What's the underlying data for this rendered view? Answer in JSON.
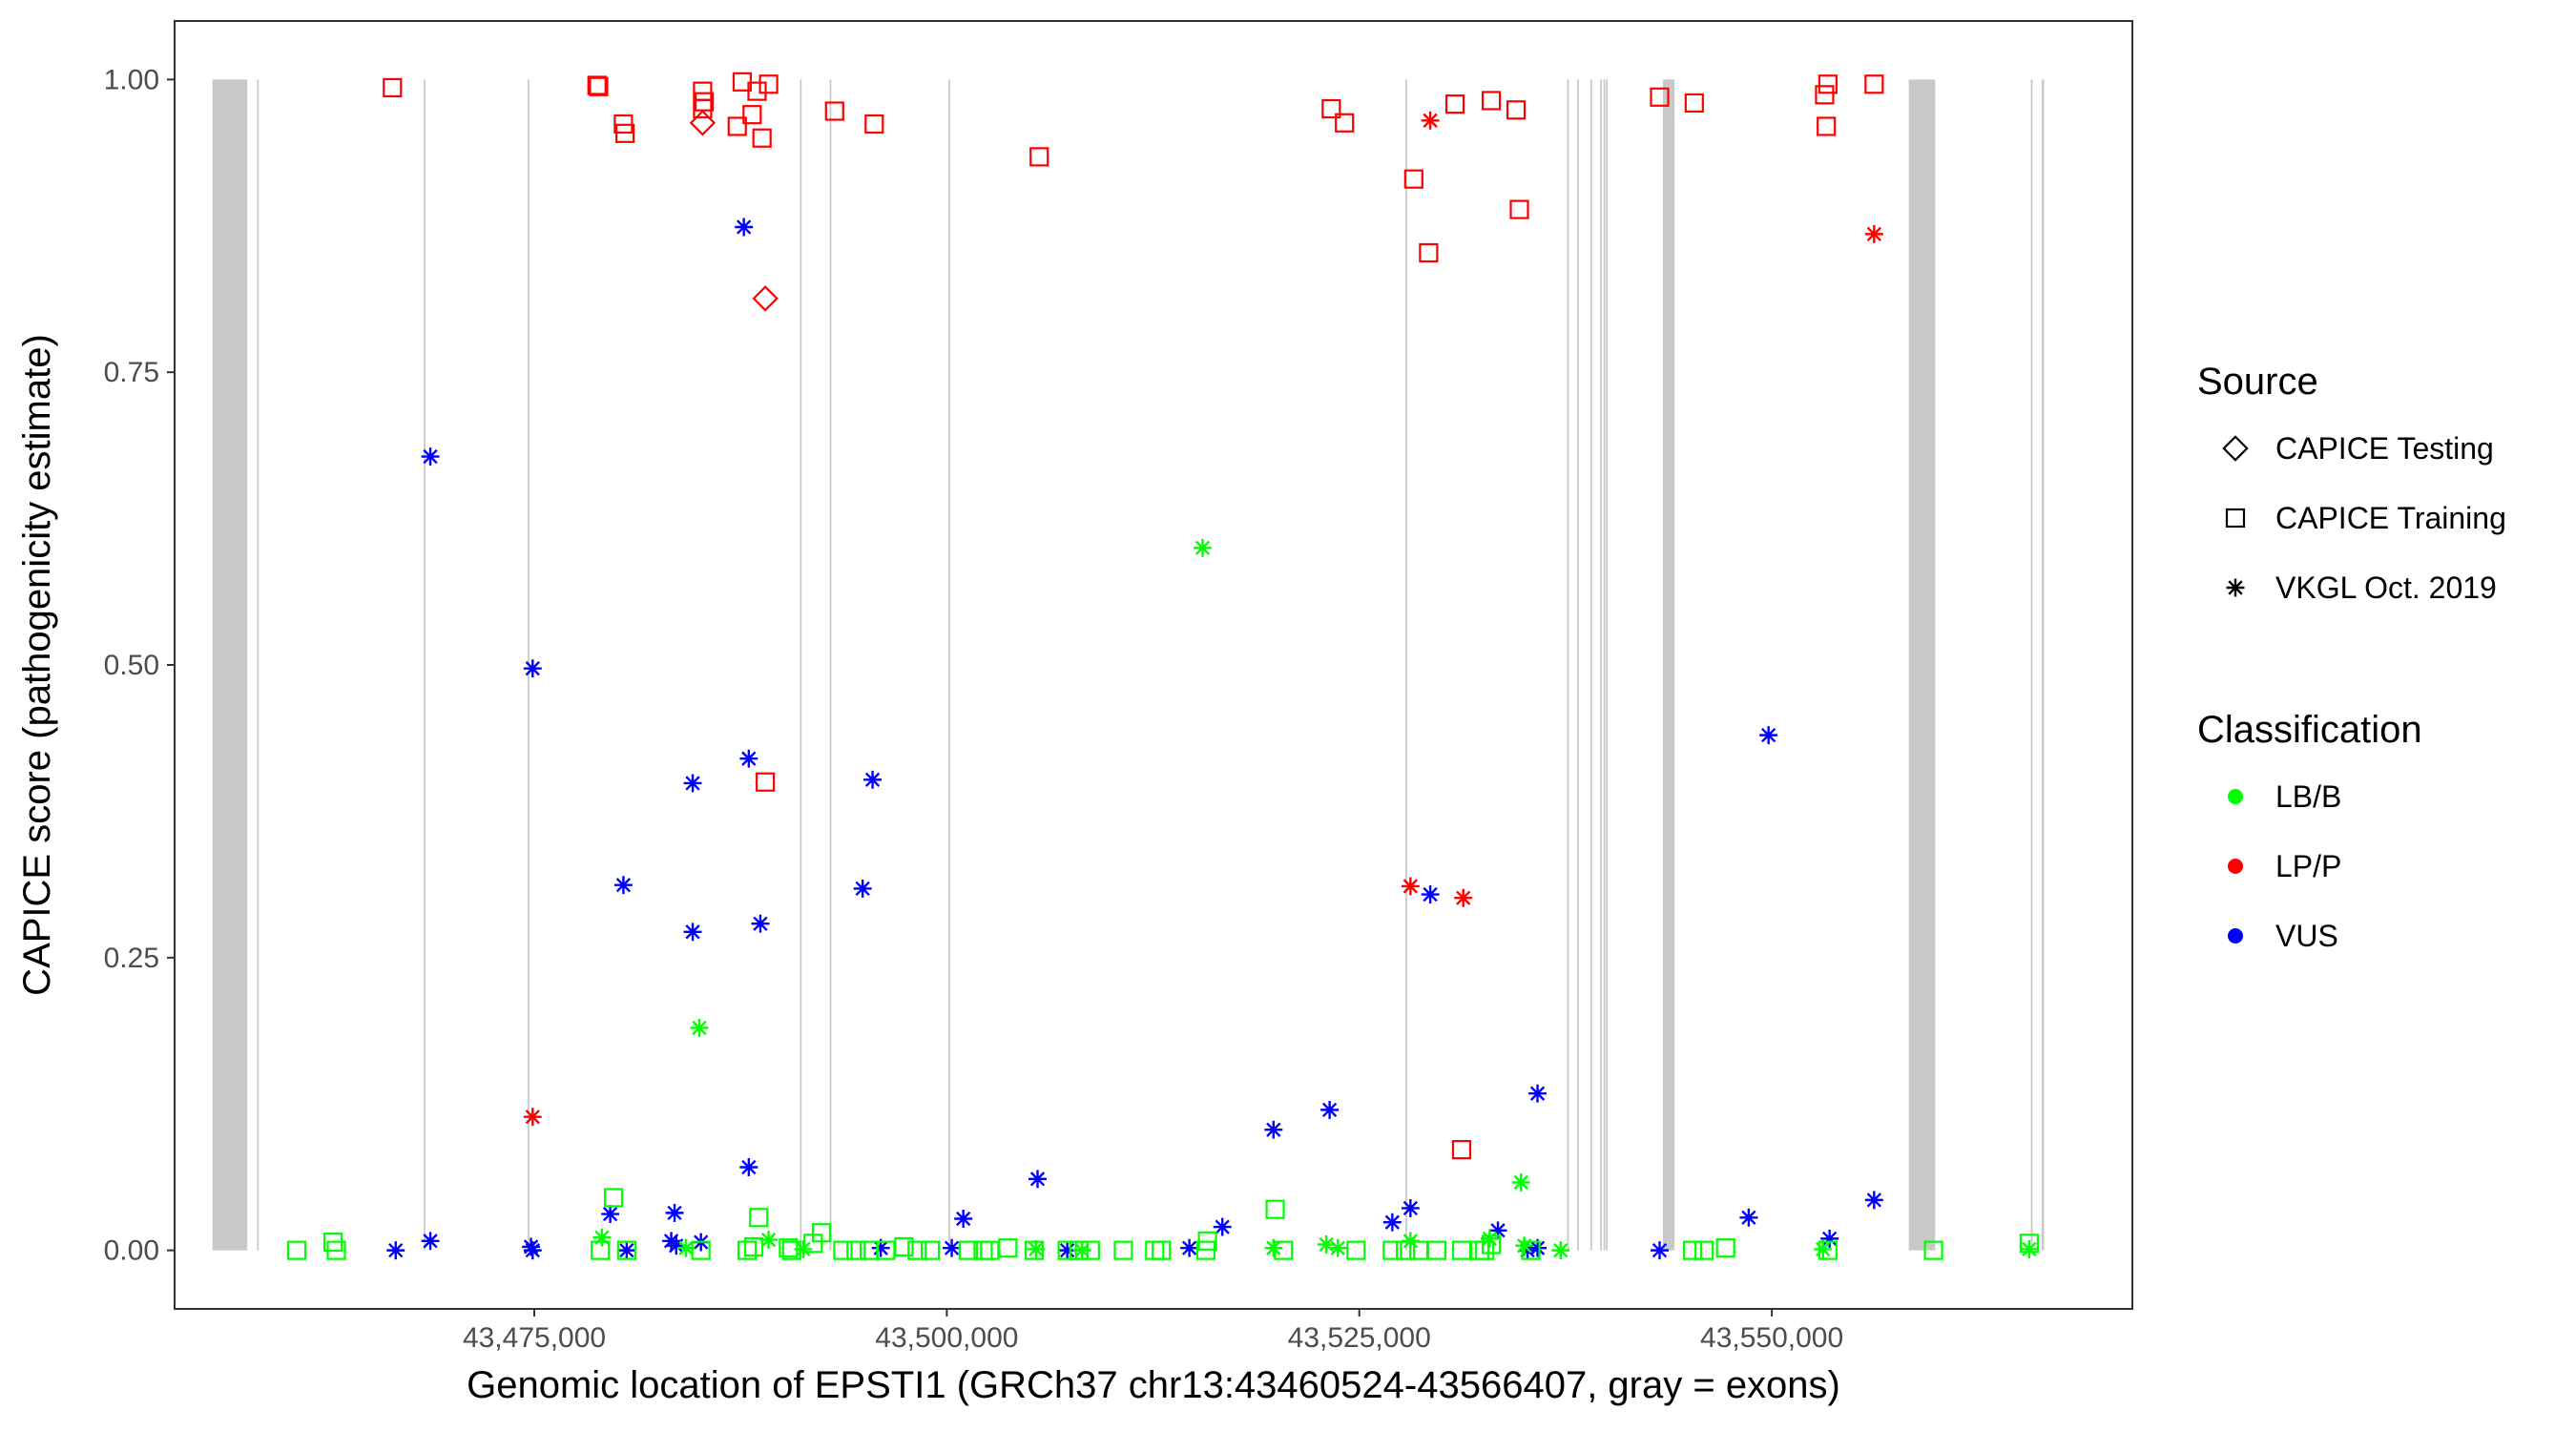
{
  "chart_data": {
    "type": "scatter",
    "xlabel": "Genomic location of EPSTI1 (GRCh37 chr13:43460524-43566407, gray = exons)",
    "ylabel": "CAPICE score (pathogenicity estimate)",
    "xlim": [
      43453200,
      43571850
    ],
    "ylim": [
      -0.05,
      1.05
    ],
    "x_ticks": [
      43475000,
      43500000,
      43525000,
      43550000
    ],
    "x_tick_labels": [
      "43,475,000",
      "43,500,000",
      "43,525,000",
      "43,550,000"
    ],
    "y_ticks": [
      0,
      0.25,
      0.5,
      0.75,
      1.0
    ],
    "y_tick_labels": [
      "0.00",
      "0.25",
      "0.50",
      "0.75",
      "1.00"
    ],
    "grid": false,
    "exons": [
      {
        "start": 43455500,
        "end": 43457600
      },
      {
        "start": 43458200,
        "end": 43458300
      },
      {
        "start": 43468300,
        "end": 43468400
      },
      {
        "start": 43474600,
        "end": 43474700
      },
      {
        "start": 43491100,
        "end": 43491200
      },
      {
        "start": 43492900,
        "end": 43493000
      },
      {
        "start": 43500100,
        "end": 43500200
      },
      {
        "start": 43527800,
        "end": 43527900
      },
      {
        "start": 43537600,
        "end": 43537700
      },
      {
        "start": 43538200,
        "end": 43538300
      },
      {
        "start": 43539000,
        "end": 43539100
      },
      {
        "start": 43539600,
        "end": 43539700
      },
      {
        "start": 43539800,
        "end": 43539900
      },
      {
        "start": 43539950,
        "end": 43540050
      },
      {
        "start": 43543400,
        "end": 43544100
      },
      {
        "start": 43558300,
        "end": 43559900
      },
      {
        "start": 43565700,
        "end": 43565800
      },
      {
        "start": 43566350,
        "end": 43566500
      }
    ],
    "legend": {
      "position": "right",
      "source_title": "Source",
      "sources": [
        {
          "name": "CAPICE Testing",
          "shape": "diamond"
        },
        {
          "name": "CAPICE Training",
          "shape": "square"
        },
        {
          "name": "VKGL Oct. 2019",
          "shape": "asterisk"
        }
      ],
      "class_title": "Classification",
      "classes": [
        {
          "name": "LB/B",
          "color": "#00ff00"
        },
        {
          "name": "LP/P",
          "color": "#ff0000"
        },
        {
          "name": "VUS",
          "color": "#0000ff"
        }
      ]
    },
    "series": [
      {
        "source": "CAPICE Testing",
        "classification": "LP/P",
        "points": [
          [
            43485200,
            0.963
          ],
          [
            43489000,
            0.813
          ]
        ]
      },
      {
        "source": "CAPICE Training",
        "classification": "LP/P",
        "points": [
          [
            43466400,
            0.993
          ],
          [
            43478800,
            0.995
          ],
          [
            43478900,
            0.994
          ],
          [
            43480400,
            0.962
          ],
          [
            43480500,
            0.954
          ],
          [
            43485200,
            0.99
          ],
          [
            43485300,
            0.981
          ],
          [
            43485200,
            0.975
          ],
          [
            43487600,
            0.998
          ],
          [
            43487300,
            0.96
          ],
          [
            43488200,
            0.97
          ],
          [
            43488500,
            0.99
          ],
          [
            43488800,
            0.95
          ],
          [
            43489200,
            0.996
          ],
          [
            43493200,
            0.973
          ],
          [
            43495600,
            0.962
          ],
          [
            43505600,
            0.934
          ],
          [
            43523300,
            0.975
          ],
          [
            43524100,
            0.963
          ],
          [
            43528300,
            0.915
          ],
          [
            43529200,
            0.852
          ],
          [
            43530800,
            0.979
          ],
          [
            43533000,
            0.982
          ],
          [
            43534500,
            0.974
          ],
          [
            43534700,
            0.889
          ],
          [
            43543200,
            0.985
          ],
          [
            43545300,
            0.98
          ],
          [
            43553200,
            0.987
          ],
          [
            43553400,
            0.996
          ],
          [
            43553300,
            0.96
          ],
          [
            43556200,
            0.996
          ],
          [
            43489000,
            0.4
          ],
          [
            43531200,
            0.086
          ]
        ]
      },
      {
        "source": "VKGL Oct. 2019",
        "classification": "LP/P",
        "points": [
          [
            43474900,
            0.114
          ],
          [
            43528100,
            0.311
          ],
          [
            43529300,
            0.965
          ],
          [
            43531300,
            0.301
          ],
          [
            43556200,
            0.868
          ]
        ]
      },
      {
        "source": "VKGL Oct. 2019",
        "classification": "VUS",
        "points": [
          [
            43468700,
            0.678
          ],
          [
            43474900,
            0.497
          ],
          [
            43480400,
            0.312
          ],
          [
            43484600,
            0.399
          ],
          [
            43484600,
            0.272
          ],
          [
            43487700,
            0.874
          ],
          [
            43488000,
            0.42
          ],
          [
            43488700,
            0.279
          ],
          [
            43488000,
            0.071
          ],
          [
            43495500,
            0.402
          ],
          [
            43494900,
            0.309
          ],
          [
            43479600,
            0.031
          ],
          [
            43483500,
            0.032
          ],
          [
            43501000,
            0.027
          ],
          [
            43505500,
            0.061
          ],
          [
            43516700,
            0.02
          ],
          [
            43519800,
            0.103
          ],
          [
            43523200,
            0.12
          ],
          [
            43527000,
            0.024
          ],
          [
            43528100,
            0.036
          ],
          [
            43529300,
            0.304
          ],
          [
            43535800,
            0.134
          ],
          [
            43533400,
            0.017
          ],
          [
            43549800,
            0.44
          ],
          [
            43548600,
            0.028
          ],
          [
            43553500,
            0.01
          ],
          [
            43556200,
            0.043
          ],
          [
            43466600,
            0.0
          ],
          [
            43468700,
            0.008
          ],
          [
            43474800,
            0.003
          ],
          [
            43474900,
            0.0
          ],
          [
            43480600,
            0.0
          ],
          [
            43483300,
            0.008
          ],
          [
            43483600,
            0.004
          ],
          [
            43485100,
            0.007
          ],
          [
            43496000,
            0.002
          ],
          [
            43500300,
            0.002
          ],
          [
            43507300,
            0.0
          ],
          [
            43514700,
            0.002
          ],
          [
            43535200,
            0.0
          ],
          [
            43535800,
            0.002
          ],
          [
            43543200,
            0.0
          ]
        ]
      },
      {
        "source": "VKGL Oct. 2019",
        "classification": "LB/B",
        "points": [
          [
            43485000,
            0.19
          ],
          [
            43515500,
            0.6
          ],
          [
            43534800,
            0.058
          ],
          [
            43479100,
            0.011
          ],
          [
            43489200,
            0.009
          ],
          [
            43484200,
            0.002
          ],
          [
            43505400,
            0.001
          ],
          [
            43519800,
            0.002
          ],
          [
            43523000,
            0.005
          ],
          [
            43523700,
            0.002
          ],
          [
            43528100,
            0.008
          ],
          [
            43532900,
            0.01
          ],
          [
            43535000,
            0.004
          ],
          [
            43537200,
            0.0
          ],
          [
            43565600,
            0.001
          ],
          [
            43553100,
            0.001
          ],
          [
            43491300,
            0.001
          ],
          [
            43508200,
            0.0
          ]
        ]
      },
      {
        "source": "CAPICE Training",
        "classification": "LB/B",
        "points": [
          [
            43460600,
            0.0
          ],
          [
            43462800,
            0.007
          ],
          [
            43463000,
            0.0
          ],
          [
            43479800,
            0.045
          ],
          [
            43479000,
            0.0
          ],
          [
            43480600,
            0.0
          ],
          [
            43485100,
            0.0
          ],
          [
            43487900,
            0.0
          ],
          [
            43488300,
            0.003
          ],
          [
            43488600,
            0.028
          ],
          [
            43490400,
            0.002
          ],
          [
            43490600,
            0.0
          ],
          [
            43491900,
            0.006
          ],
          [
            43492400,
            0.015
          ],
          [
            43493700,
            0.0
          ],
          [
            43494500,
            0.0
          ],
          [
            43495300,
            0.0
          ],
          [
            43496300,
            0.0
          ],
          [
            43497400,
            0.003
          ],
          [
            43498200,
            0.0
          ],
          [
            43499000,
            0.0
          ],
          [
            43501300,
            0.0
          ],
          [
            43502200,
            0.0
          ],
          [
            43502600,
            0.0
          ],
          [
            43503700,
            0.002
          ],
          [
            43505300,
            0.0
          ],
          [
            43507300,
            0.0
          ],
          [
            43508000,
            0.0
          ],
          [
            43508700,
            0.0
          ],
          [
            43510700,
            0.0
          ],
          [
            43512600,
            0.0
          ],
          [
            43513000,
            0.0
          ],
          [
            43515800,
            0.008
          ],
          [
            43515700,
            0.0
          ],
          [
            43519900,
            0.035
          ],
          [
            43520400,
            0.0
          ],
          [
            43524800,
            0.0
          ],
          [
            43527000,
            0.0
          ],
          [
            43527800,
            0.0
          ],
          [
            43528600,
            0.0
          ],
          [
            43529700,
            0.0
          ],
          [
            43531200,
            0.0
          ],
          [
            43532300,
            0.0
          ],
          [
            43532600,
            0.0
          ],
          [
            43533000,
            0.005
          ],
          [
            43535400,
            0.0
          ],
          [
            43545200,
            0.0
          ],
          [
            43545900,
            0.0
          ],
          [
            43547200,
            0.002
          ],
          [
            43553400,
            0.0
          ],
          [
            43559800,
            0.0
          ],
          [
            43565600,
            0.006
          ]
        ]
      }
    ]
  }
}
